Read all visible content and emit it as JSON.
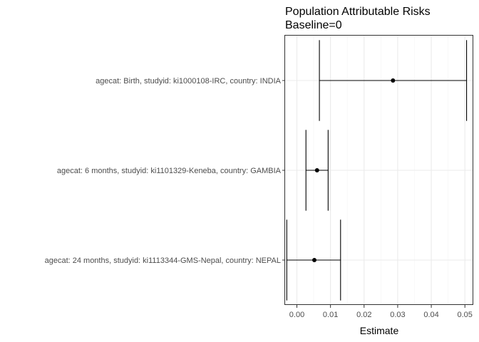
{
  "chart_data": {
    "type": "scatter",
    "title": "Population Attributable Risks",
    "subtitle": "Baseline=0",
    "xlabel": "Estimate",
    "ylabel": "",
    "xlim": [
      -0.0035,
      0.0525
    ],
    "xticks": [
      0.0,
      0.01,
      0.02,
      0.03,
      0.04,
      0.05
    ],
    "xtick_labels": [
      "0.00",
      "0.01",
      "0.02",
      "0.03",
      "0.04",
      "0.05"
    ],
    "grid": true,
    "legend": "none",
    "categories": [
      "agecat: Birth, studyid: ki1000108-IRC, country: INDIA",
      "agecat: 6 months, studyid: ki1101329-Keneba, country: GAMBIA",
      "agecat: 24 months, studyid: ki1113344-GMS-Nepal, country: NEPAL"
    ],
    "series": [
      {
        "estimates": [
          0.0286,
          0.006,
          0.0052
        ],
        "ci_lower": [
          0.0067,
          0.0027,
          -0.003
        ],
        "ci_upper": [
          0.0505,
          0.0093,
          0.013
        ]
      }
    ],
    "colors": {
      "point": "#000000",
      "errorbar": "#000000",
      "panel_border": "#333333",
      "grid_major": "#ebebeb",
      "grid_minor": "#f5f5f5",
      "tick_label": "#4d4d4d"
    }
  }
}
